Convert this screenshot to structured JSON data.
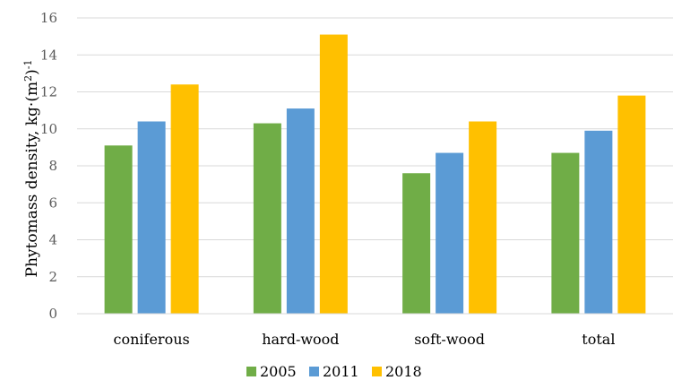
{
  "chart_data": {
    "type": "bar",
    "title": "",
    "xlabel": "",
    "ylabel": "Phytomass density, kg·(m",
    "ylabel_sup1": "2",
    "ylabel_mid": ")",
    "ylabel_sup2": "-1",
    "categories": [
      "coniferous",
      "hard-wood",
      "soft-wood",
      "total"
    ],
    "series": [
      {
        "name": "2005",
        "color": "#70ad47",
        "values": [
          9.1,
          10.3,
          7.6,
          8.7
        ]
      },
      {
        "name": "2011",
        "color": "#5b9bd5",
        "values": [
          10.4,
          11.1,
          8.7,
          9.9
        ]
      },
      {
        "name": "2018",
        "color": "#ffc000",
        "values": [
          12.4,
          15.1,
          10.4,
          11.8
        ]
      }
    ],
    "ylim": [
      0,
      16
    ],
    "yticks": [
      "0",
      "2",
      "4",
      "6",
      "8",
      "10",
      "12",
      "14",
      "16"
    ],
    "grid": true,
    "legend_position": "bottom"
  }
}
